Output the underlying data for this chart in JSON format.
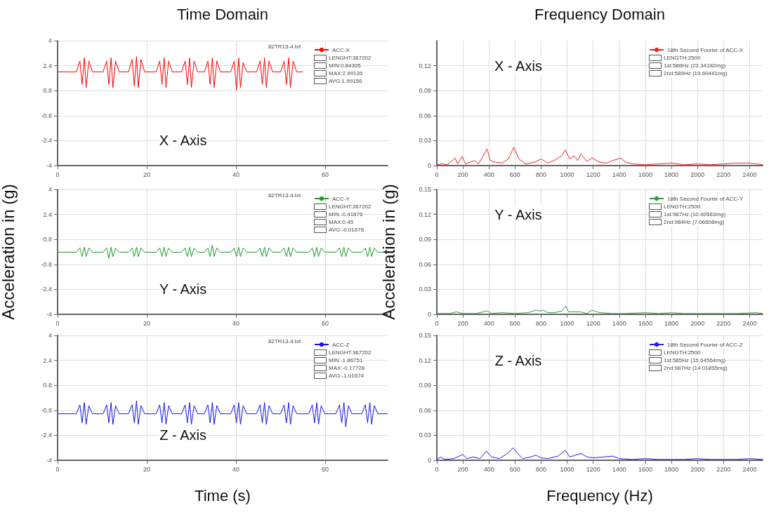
{
  "chart_data": [
    {
      "type": "line",
      "title": "Time Domain",
      "subtitle": "82TR13-4.txt",
      "annotations": [
        "X - Axis",
        "LENGHT:367202",
        "MIN:0.84305",
        "MAX:2.99135",
        "AVG:1.99156"
      ],
      "x": [
        0,
        4.2,
        5,
        5.5,
        6,
        6.4,
        7,
        7.8,
        10.2,
        11,
        11.5,
        12,
        12.4,
        13,
        13.8,
        15.9,
        16.7,
        17.2,
        17.7,
        18.1,
        18.7,
        19.5,
        22.1,
        22.9,
        23.4,
        23.9,
        24.3,
        24.9,
        25.7,
        27.8,
        28.6,
        29.1,
        29.6,
        30,
        30.6,
        31.4,
        32.9,
        33.7,
        34.2,
        34.7,
        35.1,
        35.7,
        36.5,
        38.8,
        39.6,
        40.1,
        40.6,
        41,
        41.6,
        42.4,
        44.6,
        45.4,
        45.9,
        46.4,
        46.8,
        47.4,
        48.2,
        50,
        50.8,
        51.3,
        51.8,
        52.2,
        52.8,
        53.6,
        55
      ],
      "series": [
        {
          "name": "ACC-X",
          "color": "#ff0000",
          "values": [
            2.0,
            2.0,
            2.7,
            1.2,
            2.9,
            1.0,
            2.7,
            2.0,
            2.0,
            2.7,
            1.2,
            2.9,
            1.0,
            2.7,
            2.0,
            2.0,
            2.8,
            1.1,
            2.99,
            1.0,
            2.8,
            2.0,
            2.0,
            2.7,
            1.2,
            2.9,
            1.0,
            2.7,
            2.0,
            2.0,
            2.7,
            1.2,
            2.9,
            1.0,
            2.7,
            2.0,
            2.0,
            2.7,
            1.2,
            2.9,
            1.0,
            2.7,
            2.0,
            2.0,
            2.7,
            0.84,
            2.9,
            1.0,
            2.6,
            2.0,
            2.0,
            2.7,
            1.2,
            2.9,
            1.0,
            2.7,
            2.0,
            2.0,
            2.7,
            1.2,
            2.9,
            1.0,
            2.7,
            2.0,
            2.0
          ]
        }
      ],
      "xlim": [
        0,
        74
      ],
      "ylim": [
        -4,
        4
      ],
      "xticks": [
        0,
        20,
        40,
        60
      ],
      "yticks": [
        -4,
        -2.4,
        -0.8,
        0.8,
        2.4,
        4
      ],
      "grid": true,
      "legend": "top right",
      "marker": "none",
      "line_style": "solid"
    },
    {
      "type": "line",
      "title": "Frequency Domain",
      "annotations": [
        "X - Axis",
        "LENGTH:2500",
        "1st:588Hz (23.34182mg)",
        "2nd:589Hz (19.60441mg)"
      ],
      "x": [
        0,
        40,
        80,
        140,
        160,
        195,
        220,
        290,
        320,
        385,
        410,
        450,
        500,
        550,
        590,
        630,
        680,
        750,
        800,
        850,
        900,
        960,
        985,
        1020,
        1050,
        1080,
        1105,
        1150,
        1190,
        1250,
        1300,
        1350,
        1410,
        1450,
        1500,
        1600,
        1700,
        1800,
        1900,
        2000,
        2100,
        2200,
        2300,
        2400,
        2500
      ],
      "series": [
        {
          "name": "18th Second Fourier of ACC-X",
          "color": "#ee2222",
          "values": [
            0.001,
            0.002,
            0.001,
            0.009,
            0.002,
            0.011,
            0.002,
            0.006,
            0.002,
            0.02,
            0.006,
            0.004,
            0.003,
            0.008,
            0.022,
            0.008,
            0.002,
            0.004,
            0.008,
            0.003,
            0.006,
            0.012,
            0.019,
            0.008,
            0.012,
            0.006,
            0.014,
            0.005,
            0.009,
            0.004,
            0.003,
            0.006,
            0.009,
            0.004,
            0.002,
            0.001,
            0.002,
            0.003,
            0.001,
            0.002,
            0.001,
            0.002,
            0.003,
            0.003,
            0.001
          ]
        }
      ],
      "xlim": [
        0,
        2500
      ],
      "ylim": [
        0,
        0.15
      ],
      "xticks": [
        0,
        200,
        400,
        600,
        800,
        1000,
        1200,
        1400,
        1600,
        1800,
        2000,
        2200,
        2400
      ],
      "yticks": [
        0,
        0.03,
        0.06,
        0.09,
        0.12
      ],
      "grid": true,
      "legend": "top right",
      "marker": "none",
      "line_style": "solid"
    },
    {
      "type": "line",
      "subtitle": "82TR13-4.txt",
      "ylabel": "Acceleration in (g)",
      "annotations": [
        "Y - Axis",
        "LENGHT:367202",
        "MIN:-0.41876",
        "MAX:0.45",
        "AVG:-0.01678"
      ],
      "x": [
        0,
        4.2,
        5,
        5.5,
        6,
        6.4,
        7,
        7.8,
        10.2,
        11,
        11.5,
        12,
        12.4,
        13,
        13.8,
        15.9,
        16.7,
        17.2,
        17.7,
        18.1,
        18.7,
        19.5,
        22.1,
        22.9,
        23.4,
        23.9,
        24.3,
        24.9,
        25.7,
        27.8,
        28.6,
        29.1,
        29.6,
        30,
        30.6,
        31.4,
        32.9,
        33.7,
        34.2,
        34.7,
        35.1,
        35.7,
        36.5,
        38.8,
        39.6,
        40.1,
        40.6,
        41,
        41.6,
        42.4,
        44.6,
        45.4,
        45.9,
        46.4,
        46.8,
        47.4,
        48.2,
        50,
        50.8,
        51.3,
        51.8,
        52.2,
        52.8,
        53.6,
        56.3,
        57.1,
        57.6,
        58.1,
        58.5,
        59.1,
        59.9,
        62.4,
        63.2,
        63.7,
        64.2,
        64.6,
        65.2,
        66,
        68.2,
        69,
        69.5,
        70,
        70.4,
        71,
        71.8,
        74
      ],
      "series": [
        {
          "name": "ACC-Y",
          "color": "#1f9a2a",
          "values": [
            -0.02,
            -0.02,
            0.25,
            -0.3,
            0.3,
            -0.3,
            0.25,
            -0.02,
            -0.02,
            0.25,
            -0.42,
            0.3,
            -0.3,
            0.25,
            -0.02,
            -0.02,
            0.25,
            -0.3,
            0.3,
            -0.3,
            0.25,
            -0.02,
            -0.02,
            0.25,
            -0.3,
            0.3,
            -0.3,
            0.25,
            -0.02,
            -0.02,
            0.25,
            -0.3,
            0.3,
            -0.3,
            0.25,
            -0.02,
            -0.02,
            0.25,
            -0.3,
            0.45,
            -0.3,
            0.25,
            -0.02,
            -0.02,
            0.25,
            -0.3,
            0.3,
            -0.3,
            0.25,
            -0.02,
            -0.02,
            0.25,
            -0.3,
            0.3,
            -0.3,
            0.25,
            -0.02,
            -0.02,
            0.25,
            -0.3,
            0.3,
            -0.3,
            0.25,
            -0.02,
            -0.02,
            0.25,
            -0.3,
            0.3,
            -0.3,
            0.25,
            -0.02,
            -0.02,
            0.25,
            -0.3,
            0.3,
            -0.3,
            0.25,
            -0.02,
            -0.02,
            0.25,
            -0.3,
            0.3,
            -0.3,
            0.25,
            -0.02,
            -0.02
          ]
        }
      ],
      "xlim": [
        0,
        74
      ],
      "ylim": [
        -4,
        4
      ],
      "xticks": [
        0,
        20,
        40,
        60
      ],
      "yticks": [
        -4,
        -2.4,
        -0.8,
        0.8,
        2.4,
        4
      ],
      "grid": true,
      "legend": "top right",
      "marker": "none",
      "line_style": "solid"
    },
    {
      "type": "line",
      "ylabel": "Acceleration in (g)",
      "annotations": [
        "Y - Axis",
        "LENGTH:2500",
        "1st:987Hz (10.40563mg)",
        "2nd:984Hz (7.06608mg)"
      ],
      "x": [
        0,
        100,
        150,
        200,
        300,
        390,
        420,
        500,
        600,
        700,
        760,
        790,
        820,
        850,
        900,
        960,
        990,
        1010,
        1100,
        1150,
        1190,
        1250,
        1350,
        1450,
        1600,
        1700,
        1800,
        1900,
        2000,
        2100,
        2200,
        2300,
        2450,
        2500
      ],
      "series": [
        {
          "name": "18th Second Fourier of ACC-Y",
          "color": "#2e9a3a",
          "values": [
            0.001,
            0.001,
            0.003,
            0.001,
            0.001,
            0.004,
            0.001,
            0.002,
            0.001,
            0.002,
            0.005,
            0.004,
            0.005,
            0.002,
            0.002,
            0.004,
            0.01,
            0.003,
            0.003,
            0.001,
            0.005,
            0.002,
            0.001,
            0.001,
            0.002,
            0.001,
            0.002,
            0.001,
            0.001,
            0.001,
            0.001,
            0.001,
            0.002,
            0.001
          ]
        }
      ],
      "xlim": [
        0,
        2500
      ],
      "ylim": [
        0,
        0.15
      ],
      "xticks": [
        0,
        200,
        400,
        600,
        800,
        1000,
        1200,
        1400,
        1600,
        1800,
        2000,
        2200,
        2400
      ],
      "yticks": [
        0,
        0.03,
        0.06,
        0.09,
        0.12,
        0.15
      ],
      "grid": true,
      "legend": "top right",
      "marker": "none",
      "line_style": "solid"
    },
    {
      "type": "line",
      "subtitle": "82TR13-4.txt",
      "xlabel": "Time (s)",
      "annotations": [
        "Z - Axis",
        "LENGHT:367202",
        "MIN:-1.86751",
        "MAX:-0.17728",
        "AVG:-1.01674"
      ],
      "x": [
        0,
        4.2,
        5,
        5.5,
        6,
        6.4,
        7,
        7.8,
        10.2,
        11,
        11.5,
        12,
        12.4,
        13,
        13.8,
        15.9,
        16.7,
        17.2,
        17.7,
        18.1,
        18.7,
        19.5,
        22.1,
        22.9,
        23.4,
        23.9,
        24.3,
        24.9,
        25.7,
        27.8,
        28.6,
        29.1,
        29.6,
        30,
        30.6,
        31.4,
        32.9,
        33.7,
        34.2,
        34.7,
        35.1,
        35.7,
        36.5,
        38.8,
        39.6,
        40.1,
        40.6,
        41,
        41.6,
        42.4,
        44.6,
        45.4,
        45.9,
        46.4,
        46.8,
        47.4,
        48.2,
        50,
        50.8,
        51.3,
        51.8,
        52.2,
        52.8,
        53.6,
        56.3,
        57.1,
        57.6,
        58.1,
        58.5,
        59.1,
        59.9,
        62.4,
        63.2,
        63.7,
        64.2,
        64.6,
        65.2,
        66,
        68.2,
        69,
        69.5,
        70,
        70.4,
        71,
        71.8,
        74
      ],
      "series": [
        {
          "name": "ACC-Z",
          "color": "#1414e6",
          "values": [
            -1.02,
            -1.02,
            -0.45,
            -1.6,
            -0.3,
            -1.7,
            -0.5,
            -1.02,
            -1.02,
            -0.45,
            -1.6,
            -0.3,
            -1.7,
            -0.5,
            -1.02,
            -1.02,
            -0.45,
            -1.6,
            -0.18,
            -1.7,
            -0.5,
            -1.02,
            -1.02,
            -0.45,
            -1.6,
            -0.3,
            -1.7,
            -0.5,
            -1.02,
            -1.02,
            -0.45,
            -1.6,
            -0.3,
            -1.7,
            -0.5,
            -1.02,
            -1.02,
            -0.45,
            -1.6,
            -0.3,
            -1.7,
            -0.5,
            -1.02,
            -1.02,
            -0.45,
            -1.6,
            -0.3,
            -1.7,
            -0.5,
            -1.02,
            -1.02,
            -0.45,
            -1.6,
            -0.3,
            -1.7,
            -0.5,
            -1.02,
            -1.02,
            -0.45,
            -1.6,
            -0.3,
            -1.7,
            -0.5,
            -1.02,
            -1.02,
            -0.45,
            -1.6,
            -0.3,
            -1.7,
            -0.5,
            -1.02,
            -1.02,
            -0.45,
            -1.6,
            -0.3,
            -1.87,
            -0.5,
            -1.02,
            -1.02,
            -0.45,
            -1.6,
            -0.3,
            -1.7,
            -0.5,
            -1.02,
            -1.02
          ]
        }
      ],
      "xlim": [
        0,
        74
      ],
      "ylim": [
        -4,
        4
      ],
      "xticks": [
        0,
        20,
        40,
        60
      ],
      "yticks": [
        -4,
        -2.4,
        -0.8,
        0.8,
        2.4,
        4
      ],
      "grid": true,
      "legend": "top right",
      "marker": "none",
      "line_style": "solid"
    },
    {
      "type": "line",
      "xlabel": "Frequency (Hz)",
      "annotations": [
        "Z - Axis",
        "LENGTH:2500",
        "1st:585Hz (15.64564mg)",
        "2nd:987Hz (14.01855mg)"
      ],
      "x": [
        0,
        30,
        60,
        130,
        200,
        230,
        280,
        330,
        380,
        420,
        480,
        550,
        585,
        620,
        660,
        720,
        760,
        800,
        850,
        930,
        985,
        1020,
        1080,
        1110,
        1150,
        1200,
        1280,
        1350,
        1400,
        1500,
        1600,
        1700,
        1800,
        1900,
        2000,
        2100,
        2200,
        2300,
        2400,
        2500
      ],
      "series": [
        {
          "name": "18th Second Fourier of ACC-Z",
          "color": "#2020dd",
          "values": [
            0.001,
            0.004,
            0.001,
            0.002,
            0.007,
            0.002,
            0.004,
            0.002,
            0.011,
            0.004,
            0.002,
            0.009,
            0.015,
            0.008,
            0.002,
            0.004,
            0.006,
            0.003,
            0.002,
            0.005,
            0.012,
            0.004,
            0.007,
            0.008,
            0.004,
            0.003,
            0.004,
            0.005,
            0.002,
            0.001,
            0.002,
            0.001,
            0.001,
            0.001,
            0.002,
            0.001,
            0.001,
            0.001,
            0.002,
            0.001
          ]
        }
      ],
      "xlim": [
        0,
        2500
      ],
      "ylim": [
        0,
        0.15
      ],
      "xticks": [
        0,
        200,
        400,
        600,
        800,
        1000,
        1200,
        1400,
        1600,
        1800,
        2000,
        2200,
        2400
      ],
      "yticks": [
        0,
        0.03,
        0.06,
        0.09,
        0.12,
        0.15
      ],
      "grid": true,
      "legend": "top right",
      "marker": "none",
      "line_style": "solid"
    }
  ]
}
